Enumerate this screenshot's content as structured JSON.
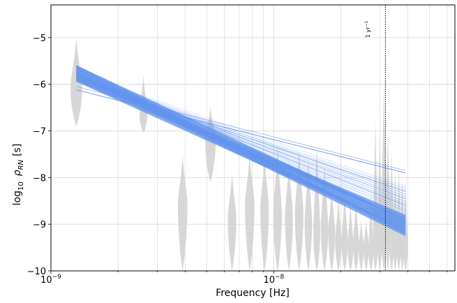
{
  "chart_data": {
    "type": "line",
    "title": "",
    "xlabel": "Frequency [Hz]",
    "ylabel_main": "log",
    "ylabel_sub": "10",
    "ylabel_rho": "ρ",
    "ylabel_rho_sub": "RN",
    "ylabel_unit": "[s]",
    "x_scale": "log",
    "xlim": [
      1e-09,
      6.5e-08
    ],
    "ylim": [
      -10,
      -4.3
    ],
    "x_ticks": [
      {
        "value": 1e-09,
        "base": "10",
        "exp": "−9"
      },
      {
        "value": 1e-08,
        "base": "10",
        "exp": "−8"
      }
    ],
    "y_ticks": [
      {
        "value": -10,
        "label": "−10"
      },
      {
        "value": -9,
        "label": "−9"
      },
      {
        "value": -8,
        "label": "−8"
      },
      {
        "value": -7,
        "label": "−7"
      },
      {
        "value": -6,
        "label": "−6"
      },
      {
        "value": -5,
        "label": "−5"
      }
    ],
    "grid": true,
    "reference_line": {
      "x": 3.17e-08,
      "label_base": "1 yr",
      "label_exp": "−1"
    },
    "violins": [
      {
        "f": 1.3e-09,
        "center": -6.1,
        "top": -5.0,
        "bottom": -6.9,
        "width": 0.22
      },
      {
        "f": 2.6e-09,
        "center": -6.65,
        "top": -5.8,
        "bottom": -7.05,
        "width": 0.15
      },
      {
        "f": 3.9e-09,
        "center": -8.6,
        "top": -7.5,
        "bottom": -10.0,
        "width": 0.18
      },
      {
        "f": 5.2e-09,
        "center": -7.2,
        "top": -6.5,
        "bottom": -8.1,
        "width": 0.2
      },
      {
        "f": 6.5e-09,
        "center": -8.9,
        "top": -7.9,
        "bottom": -10.0,
        "width": 0.16
      },
      {
        "f": 7.8e-09,
        "center": -8.6,
        "top": -7.5,
        "bottom": -10.0,
        "width": 0.18
      },
      {
        "f": 9.1e-09,
        "center": -8.7,
        "top": -7.5,
        "bottom": -10.0,
        "width": 0.16
      },
      {
        "f": 1.04e-08,
        "center": -8.8,
        "top": -7.3,
        "bottom": -10.0,
        "width": 0.16
      },
      {
        "f": 1.17e-08,
        "center": -8.9,
        "top": -7.6,
        "bottom": -10.0,
        "width": 0.15
      },
      {
        "f": 1.3e-08,
        "center": -8.8,
        "top": -7.4,
        "bottom": -10.0,
        "width": 0.16
      },
      {
        "f": 1.43e-08,
        "center": -9.0,
        "top": -7.6,
        "bottom": -10.0,
        "width": 0.14
      },
      {
        "f": 1.56e-08,
        "center": -9.2,
        "top": -7.3,
        "bottom": -10.0,
        "width": 0.13
      },
      {
        "f": 1.69e-08,
        "center": -9.1,
        "top": -7.7,
        "bottom": -10.0,
        "width": 0.14
      },
      {
        "f": 1.82e-08,
        "center": -9.2,
        "top": -8.2,
        "bottom": -10.0,
        "width": 0.13
      },
      {
        "f": 1.95e-08,
        "center": -9.4,
        "top": -8.4,
        "bottom": -10.0,
        "width": 0.12
      },
      {
        "f": 2.08e-08,
        "center": -9.4,
        "top": -8.3,
        "bottom": -10.0,
        "width": 0.12
      },
      {
        "f": 2.21e-08,
        "center": -9.5,
        "top": -8.5,
        "bottom": -10.0,
        "width": 0.11
      },
      {
        "f": 2.34e-08,
        "center": -9.4,
        "top": -8.5,
        "bottom": -10.0,
        "width": 0.11
      },
      {
        "f": 2.47e-08,
        "center": -9.5,
        "top": -8.9,
        "bottom": -10.0,
        "width": 0.1
      },
      {
        "f": 2.6e-08,
        "center": -9.5,
        "top": -8.9,
        "bottom": -10.0,
        "width": 0.1
      },
      {
        "f": 2.73e-08,
        "center": -9.6,
        "top": -8.3,
        "bottom": -10.0,
        "width": 0.09
      },
      {
        "f": 2.86e-08,
        "center": -9.4,
        "top": -6.7,
        "bottom": -10.0,
        "width": 0.1
      },
      {
        "f": 2.99e-08,
        "center": -9.3,
        "top": -7.0,
        "bottom": -10.0,
        "width": 0.1
      },
      {
        "f": 3.12e-08,
        "center": -9.2,
        "top": -5.8,
        "bottom": -10.0,
        "width": 0.1
      },
      {
        "f": 3.25e-08,
        "center": -9.0,
        "top": -7.0,
        "bottom": -10.0,
        "width": 0.1
      },
      {
        "f": 3.38e-08,
        "center": -9.3,
        "top": -7.4,
        "bottom": -10.0,
        "width": 0.1
      },
      {
        "f": 3.51e-08,
        "center": -9.3,
        "top": -7.8,
        "bottom": -10.0,
        "width": 0.09
      },
      {
        "f": 3.64e-08,
        "center": -9.4,
        "top": -7.7,
        "bottom": -10.0,
        "width": 0.09
      },
      {
        "f": 3.77e-08,
        "center": -9.3,
        "top": -8.0,
        "bottom": -10.0,
        "width": 0.09
      },
      {
        "f": 3.9e-08,
        "center": -9.5,
        "top": -8.0,
        "bottom": -10.0,
        "width": 0.09
      }
    ],
    "realizations": {
      "f_start": 1.3e-09,
      "f_end": 3.9e-08,
      "main_band_start": [
        -5.6,
        -5.95
      ],
      "main_band_end": [
        -8.8,
        -9.25
      ],
      "flat_lines": [
        {
          "start": -6.05,
          "end": -7.85
        },
        {
          "start": -5.9,
          "end": -8.3
        },
        {
          "start": -5.85,
          "end": -8.45
        },
        {
          "start": -5.8,
          "end": -8.6
        }
      ],
      "outlier": {
        "start": -6.12,
        "end": -7.9
      },
      "color": "#6495ed"
    },
    "colors": {
      "violin": "#d3d3d3",
      "line": "#6495ed",
      "grid": "#d9d9d9",
      "reference": "#000000"
    }
  }
}
